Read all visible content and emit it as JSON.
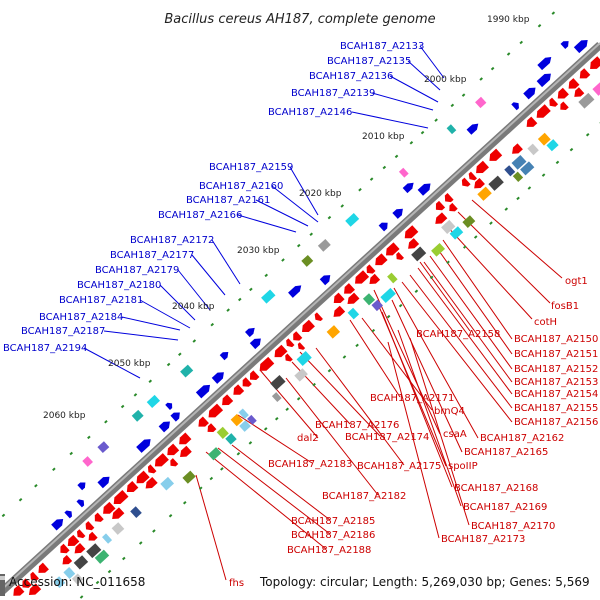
{
  "title": "Bacillus cereus AH187, complete genome",
  "footer": {
    "accession": "Accession: NC_011658",
    "info": "Topology: circular; Length: 5,269,030 bp; Genes: 5,569"
  },
  "colors": {
    "backbone": "#7f7f7f",
    "forward_gene": "#ee0000",
    "reverse_gene": "#0000dd",
    "forward_label": "#cc0000",
    "reverse_label": "#0000cc",
    "tick": "#2a8a2a"
  },
  "kbp_ticks": [
    "1990 kbp",
    "2000 kbp",
    "2010 kbp",
    "2020 kbp",
    "2030 kbp",
    "2040 kbp",
    "2050 kbp",
    "2060 kbp"
  ],
  "upper_labels": [
    "BCAH187_A2133",
    "BCAH187_A2135",
    "BCAH187_A2136",
    "BCAH187_A2139",
    "BCAH187_A2146",
    "BCAH187_A2159",
    "BCAH187_A2160",
    "BCAH187_A2161",
    "BCAH187_A2166",
    "BCAH187_A2172",
    "BCAH187_A2177",
    "BCAH187_A2179",
    "BCAH187_A2180",
    "BCAH187_A2181",
    "BCAH187_A2184",
    "BCAH187_A2187",
    "BCAH187_A2194"
  ],
  "lower_labels": [
    "ogt1",
    "fosB1",
    "cotH",
    "BCAH187_A2158",
    "BCAH187_A2150",
    "BCAH187_A2151",
    "BCAH187_A2152",
    "BCAH187_A2153",
    "BCAH187_A2154",
    "BCAH187_A2155",
    "BCAH187_A2156",
    "brnQ4",
    "BCAH187_A2171",
    "csaA",
    "BCAH187_A2162",
    "BCAH187_A2176",
    "dal2",
    "BCAH187_A2174",
    "BCAH187_A2165",
    "spoIIP",
    "BCAH187_A2175",
    "BCAH187_A2183",
    "BCAH187_A2168",
    "BCAH187_A2182",
    "BCAH187_A2169",
    "BCAH187_A2170",
    "BCAH187_A2185",
    "BCAH187_A2186",
    "BCAH187_A2173",
    "BCAH187_A2188",
    "fhs"
  ]
}
